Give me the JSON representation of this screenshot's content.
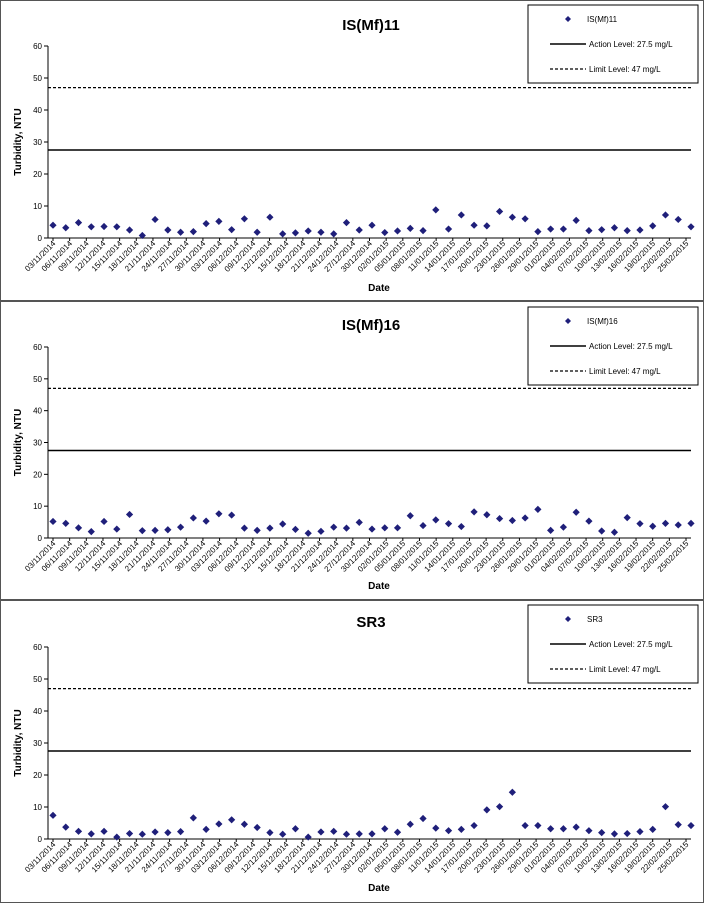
{
  "colors": {
    "marker": "#1F1F7A",
    "line": "#000000",
    "border": "#555555"
  },
  "chart_data": [
    {
      "type": "scatter",
      "title": "IS(Mf)11",
      "xlabel": "Date",
      "ylabel": "Turbidity, NTU",
      "ylim": [
        0,
        60
      ],
      "yticks": [
        "0",
        "10",
        "20",
        "30",
        "40",
        "50",
        "60"
      ],
      "grid": false,
      "legend_position": "top-right",
      "x_tick_labels": [
        "03/11/2014",
        "06/11/2014",
        "09/11/2014",
        "12/11/2014",
        "15/11/2014",
        "18/11/2014",
        "21/11/2014",
        "24/11/2014",
        "27/11/2014",
        "30/11/2014",
        "03/12/2014",
        "06/12/2014",
        "09/12/2014",
        "12/12/2014",
        "15/12/2014",
        "18/12/2014",
        "21/12/2014",
        "24/12/2014",
        "27/12/2014",
        "30/12/2014",
        "02/01/2015",
        "05/01/2015",
        "08/01/2015",
        "11/01/2015",
        "14/01/2015",
        "17/01/2015",
        "20/01/2015",
        "23/01/2015",
        "26/01/2015",
        "29/01/2015",
        "01/02/2015",
        "04/02/2015",
        "07/02/2015",
        "10/02/2015",
        "13/02/2015",
        "16/02/2015",
        "19/02/2015",
        "22/02/2015",
        "25/02/2015"
      ],
      "series": [
        {
          "name": "IS(Mf)11",
          "values": [
            4.0,
            3.2,
            4.8,
            3.5,
            3.6,
            3.5,
            2.5,
            0.8,
            5.8,
            2.5,
            1.8,
            2.0,
            4.5,
            5.2,
            2.6,
            6.0,
            1.8,
            6.5,
            1.3,
            1.6,
            2.2,
            1.8,
            1.3,
            4.8,
            2.5,
            4.0,
            1.7,
            2.2,
            3.0,
            2.3,
            8.8,
            2.8,
            7.2,
            4.0,
            3.8,
            8.3,
            6.5,
            6.0,
            2.0,
            2.8,
            2.8,
            5.5,
            2.3,
            2.6,
            3.2,
            2.3,
            2.5,
            3.8,
            7.2,
            5.8,
            3.5
          ]
        }
      ],
      "action_level": {
        "label": "Action Level: 27.5 mg/L",
        "value": 27.5
      },
      "limit_level": {
        "label": "Limit Level: 47 mg/L",
        "value": 47
      }
    },
    {
      "type": "scatter",
      "title": "IS(Mf)16",
      "xlabel": "Date",
      "ylabel": "Turbidity, NTU",
      "ylim": [
        0,
        60
      ],
      "yticks": [
        "0",
        "10",
        "20",
        "30",
        "40",
        "50",
        "60"
      ],
      "grid": false,
      "legend_position": "top-right",
      "x_tick_labels": [
        "03/11/2014",
        "06/11/2014",
        "09/11/2014",
        "12/11/2014",
        "15/11/2014",
        "18/11/2014",
        "21/11/2014",
        "24/11/2014",
        "27/11/2014",
        "30/11/2014",
        "03/12/2014",
        "06/12/2014",
        "09/12/2014",
        "12/12/2014",
        "15/12/2014",
        "18/12/2014",
        "21/12/2014",
        "24/12/2014",
        "27/12/2014",
        "30/12/2014",
        "02/01/2015",
        "05/01/2015",
        "08/01/2015",
        "11/01/2015",
        "14/01/2015",
        "17/01/2015",
        "20/01/2015",
        "23/01/2015",
        "26/01/2015",
        "29/01/2015",
        "01/02/2015",
        "04/02/2015",
        "07/02/2015",
        "10/02/2015",
        "13/02/2015",
        "16/02/2015",
        "19/02/2015",
        "22/02/2015",
        "25/02/2015"
      ],
      "series": [
        {
          "name": "IS(Mf)16",
          "values": [
            5.2,
            4.6,
            3.2,
            2.0,
            5.2,
            2.8,
            7.4,
            2.3,
            2.4,
            2.6,
            3.4,
            6.3,
            5.3,
            7.6,
            7.2,
            3.1,
            2.4,
            3.1,
            4.4,
            2.7,
            1.5,
            2.1,
            3.4,
            3.1,
            4.9,
            2.8,
            3.2,
            3.2,
            7.0,
            3.9,
            5.7,
            4.5,
            3.6,
            8.2,
            7.3,
            6.1,
            5.5,
            6.3,
            9.0,
            2.4,
            3.4,
            8.1,
            5.3,
            2.2,
            1.8,
            6.4,
            4.5,
            3.7,
            4.6,
            4.1,
            4.6
          ]
        }
      ],
      "action_level": {
        "label": "Action Level: 27.5 mg/L",
        "value": 27.5
      },
      "limit_level": {
        "label": "Limit Level: 47 mg/L",
        "value": 47
      }
    },
    {
      "type": "scatter",
      "title": "SR3",
      "xlabel": "Date",
      "ylabel": "Turbidity, NTU",
      "ylim": [
        0,
        60
      ],
      "yticks": [
        "0",
        "10",
        "20",
        "30",
        "40",
        "50",
        "60"
      ],
      "grid": false,
      "legend_position": "top-right",
      "x_tick_labels": [
        "03/11/2014",
        "06/11/2014",
        "09/11/2014",
        "12/11/2014",
        "15/11/2014",
        "18/11/2014",
        "21/11/2014",
        "24/11/2014",
        "27/11/2014",
        "30/11/2014",
        "03/12/2014",
        "06/12/2014",
        "09/12/2014",
        "12/12/2014",
        "15/12/2014",
        "18/12/2014",
        "21/12/2014",
        "24/12/2014",
        "27/12/2014",
        "30/12/2014",
        "02/01/2015",
        "05/01/2015",
        "08/01/2015",
        "11/01/2015",
        "14/01/2015",
        "17/01/2015",
        "20/01/2015",
        "23/01/2015",
        "26/01/2015",
        "29/01/2015",
        "01/02/2015",
        "04/02/2015",
        "07/02/2015",
        "10/02/2015",
        "13/02/2015",
        "16/02/2015",
        "19/02/2015",
        "22/02/2015",
        "25/02/2015"
      ],
      "series": [
        {
          "name": "SR3",
          "values": [
            7.4,
            3.7,
            2.4,
            1.6,
            2.4,
            0.6,
            1.7,
            1.5,
            2.2,
            2.0,
            2.3,
            6.6,
            3.0,
            4.7,
            6.0,
            4.6,
            3.6,
            2.0,
            1.5,
            3.2,
            0.6,
            2.2,
            2.4,
            1.5,
            1.6,
            1.6,
            3.2,
            2.1,
            4.6,
            6.4,
            3.4,
            2.6,
            3.0,
            4.2,
            9.1,
            10.1,
            14.6,
            4.2,
            4.2,
            3.2,
            3.2,
            3.7,
            2.6,
            2.0,
            1.6,
            1.7,
            2.3,
            3.0,
            10.1,
            4.5,
            4.2
          ]
        }
      ],
      "action_level": {
        "label": "Action Level: 27.5 mg/L",
        "value": 27.5
      },
      "limit_level": {
        "label": "Limit Level: 47 mg/L",
        "value": 47
      }
    }
  ]
}
